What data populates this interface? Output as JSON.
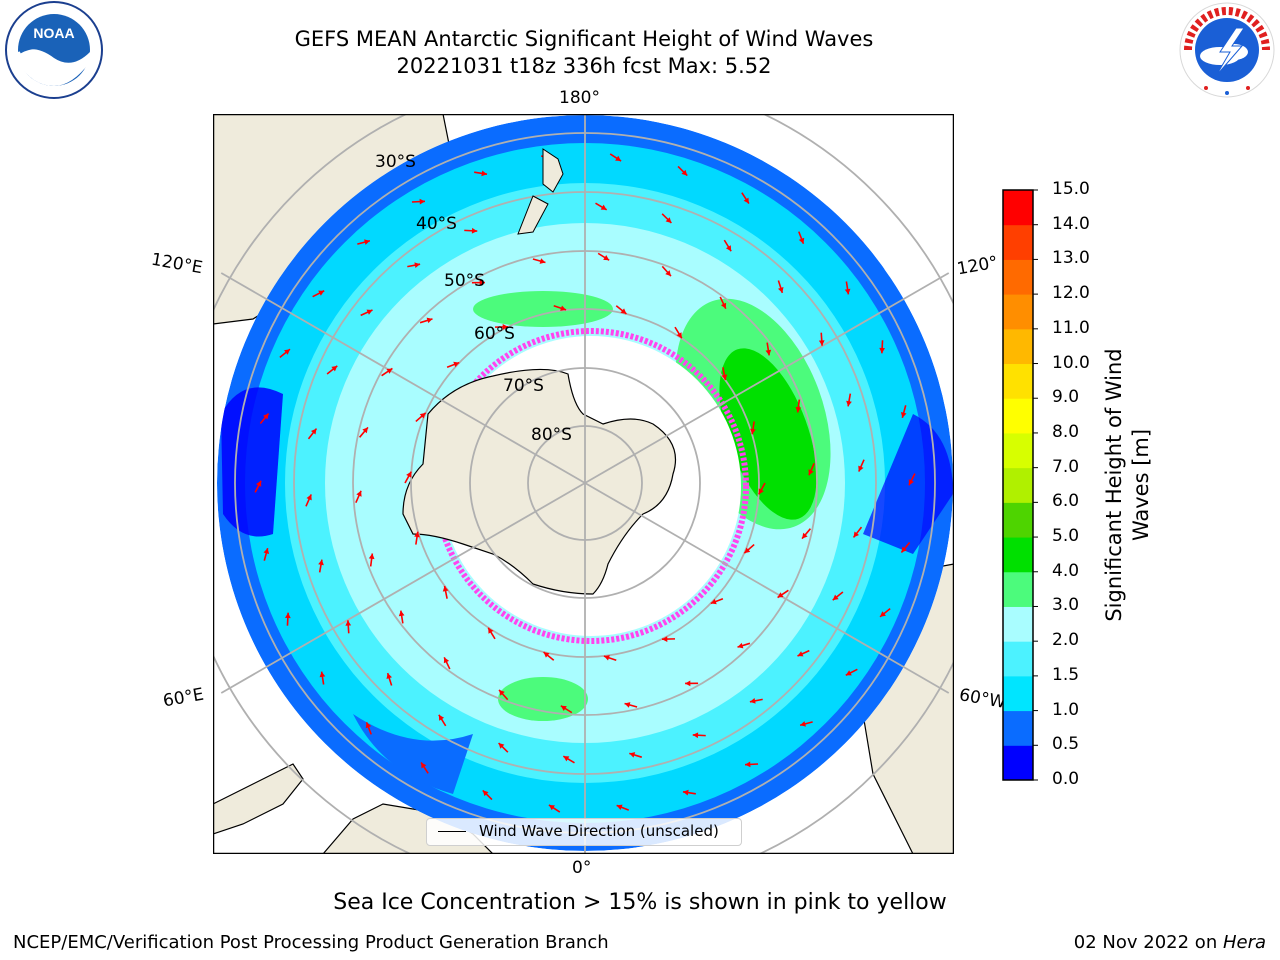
{
  "header": {
    "title_line1": "GEFS MEAN Antarctic Significant Height of Wind Waves",
    "title_line2": "20221031 t18z 336h fcst   Max: 5.52"
  },
  "logos": {
    "left": "noaa-logo",
    "right": "national-weather-service-logo"
  },
  "map": {
    "projection": "south-polar-stereographic",
    "longitude_labels": [
      "180°",
      "120°E",
      "120°",
      "60°E",
      "60°W",
      "0°"
    ],
    "latitude_labels": [
      "30°S",
      "40°S",
      "50°S",
      "60°S",
      "70°S",
      "80°S"
    ],
    "land_color": "#efebdc",
    "arrow_color": "#ff0000",
    "gridline_color": "#b0b0b0",
    "legend_label": "Wind Wave Direction (unscaled)"
  },
  "colorbar": {
    "label_line1": "Significant Height of Wind",
    "label_line2": "Waves [m]",
    "ticks": [
      "0.0",
      "0.5",
      "1.0",
      "1.5",
      "2.0",
      "3.0",
      "4.0",
      "5.0",
      "6.0",
      "7.0",
      "8.0",
      "9.0",
      "10.0",
      "11.0",
      "12.0",
      "13.0",
      "14.0",
      "15.0"
    ],
    "colors": [
      "#0000ff",
      "#0a6cff",
      "#00e5ff",
      "#4cf2ff",
      "#a9fdff",
      "#4cfb7c",
      "#00e000",
      "#4ed400",
      "#b0f000",
      "#d7ff00",
      "#ffff00",
      "#ffe100",
      "#ffb800",
      "#ff8e00",
      "#ff6a00",
      "#ff3f00",
      "#ff0000"
    ]
  },
  "footer": {
    "sea_ice_note": "Sea Ice Concentration > 15% is shown in pink to yellow",
    "credit": "NCEP/EMC/Verification Post Processing Product Generation Branch",
    "date_text": "02 Nov 2022 on ",
    "machine": "Hera"
  }
}
